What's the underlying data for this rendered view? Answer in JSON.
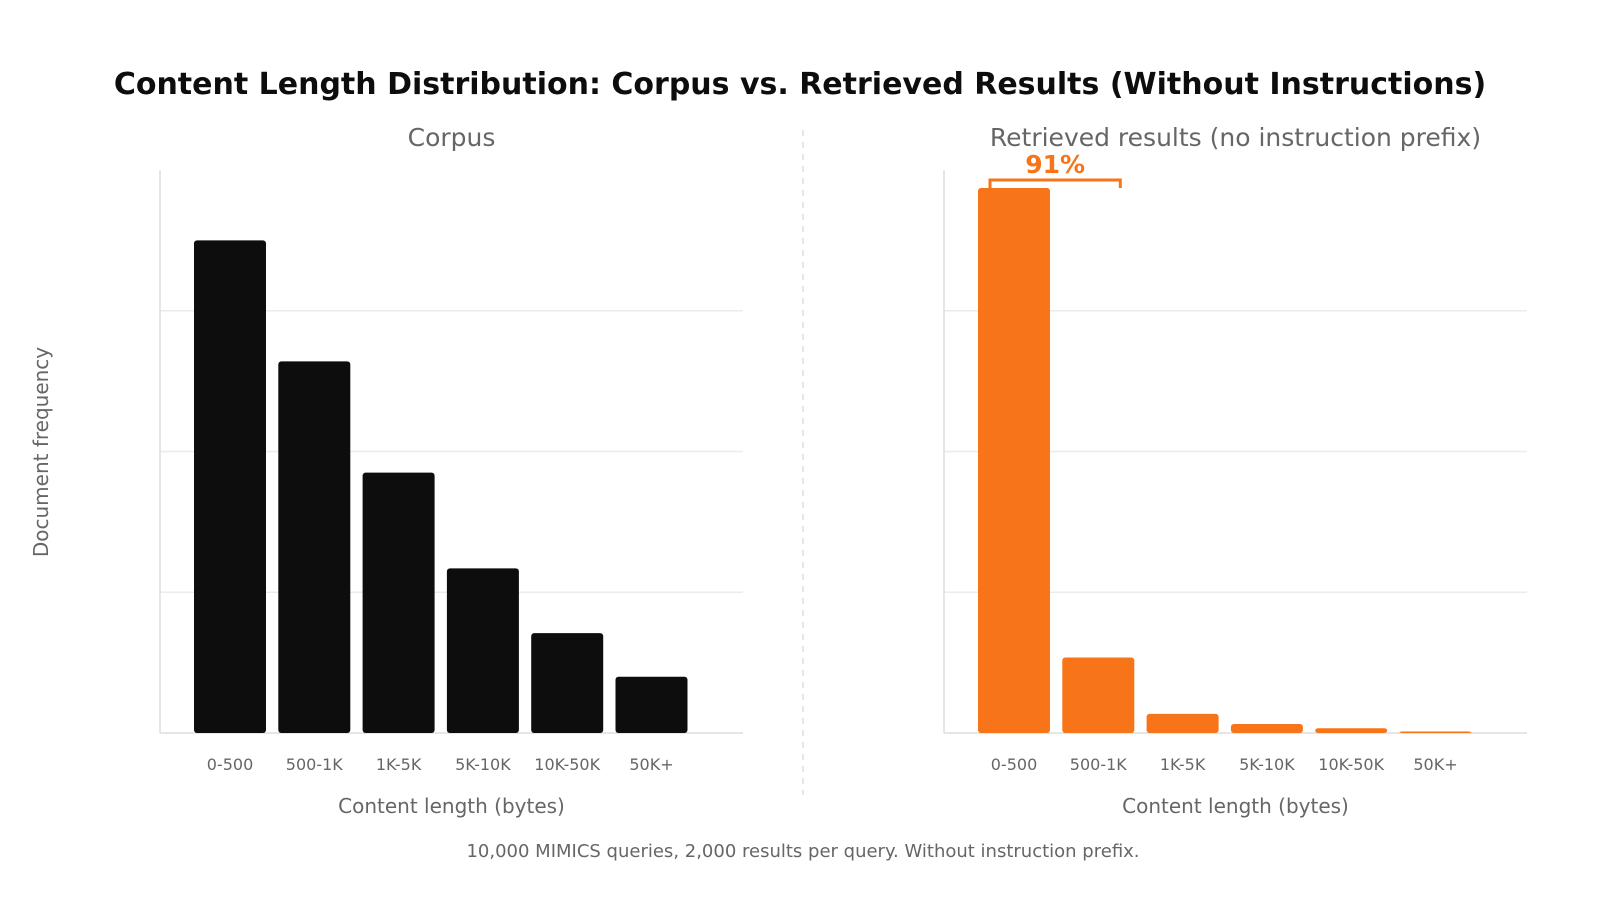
{
  "figure": {
    "title": "Content Length Distribution: Corpus vs. Retrieved Results (Without Instructions)",
    "caption": "10,000 MIMICS queries, 2,000 results per query. Without instruction prefix.",
    "ylabel": "Document frequency"
  },
  "chart_data": [
    {
      "type": "bar",
      "title": "Corpus",
      "xlabel": "Content length (bytes)",
      "ylabel": "Document frequency",
      "categories": [
        "0-500",
        "500-1K",
        "1K-5K",
        "5K-10K",
        "10K-50K",
        "50K+"
      ],
      "values": [
        0.35,
        0.264,
        0.185,
        0.117,
        0.071,
        0.04
      ],
      "ylim": [
        0,
        0.4
      ],
      "color": "#0d0d0d",
      "grid": true
    },
    {
      "type": "bar",
      "title": "Retrieved results (no instruction prefix)",
      "xlabel": "Content length (bytes)",
      "ylabel": "Document frequency",
      "categories": [
        "0-500",
        "500-1K",
        "1K-5K",
        "5K-10K",
        "10K-50K",
        "50K+"
      ],
      "values": [
        0.91,
        0.126,
        0.032,
        0.015,
        0.008,
        0.002
      ],
      "ylim": [
        0,
        0.94
      ],
      "color": "#f77518",
      "grid": true,
      "annotation": {
        "text": "91%",
        "color": "#f77518"
      }
    }
  ]
}
